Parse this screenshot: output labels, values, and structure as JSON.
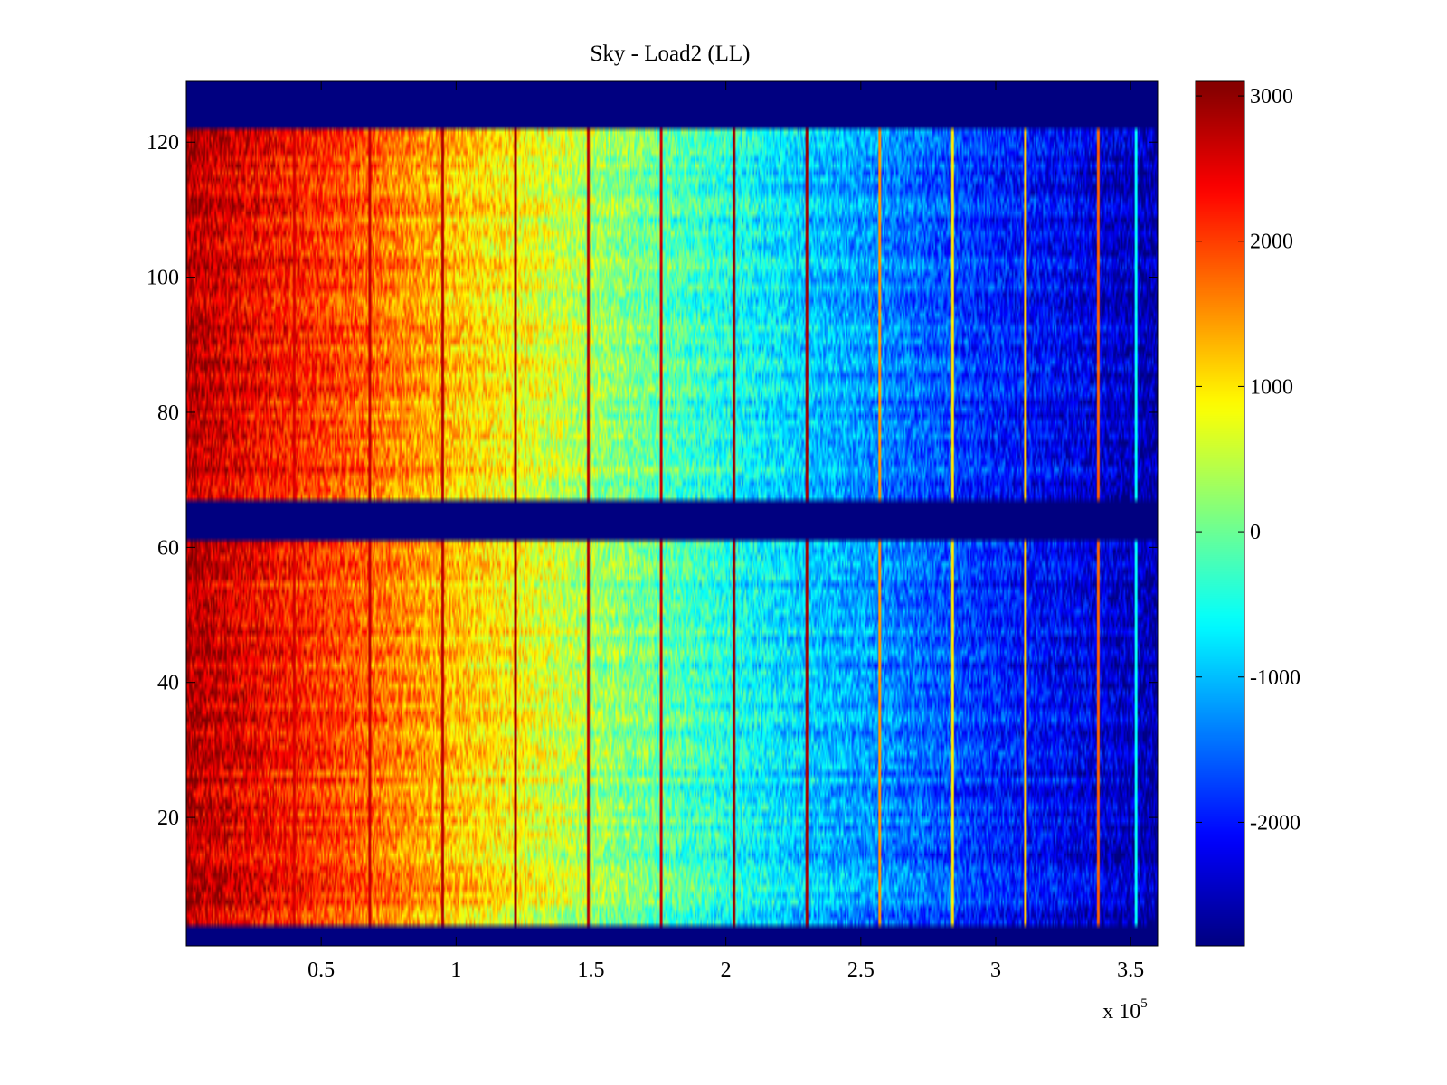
{
  "chart_data": {
    "type": "heatmap",
    "title": "Sky - Load2 (LL)",
    "xlabel": "",
    "ylabel": "",
    "x_exponent_label": {
      "base": "x 10",
      "exponent": "5"
    },
    "xlim": [
      0,
      3.6
    ],
    "ylim": [
      1,
      129
    ],
    "x_ticks": [
      {
        "value": 0.5,
        "label": "0.5"
      },
      {
        "value": 1,
        "label": "1"
      },
      {
        "value": 1.5,
        "label": "1.5"
      },
      {
        "value": 2,
        "label": "2"
      },
      {
        "value": 2.5,
        "label": "2.5"
      },
      {
        "value": 3,
        "label": "3"
      },
      {
        "value": 3.5,
        "label": "3.5"
      }
    ],
    "y_ticks": [
      {
        "value": 20,
        "label": "20"
      },
      {
        "value": 40,
        "label": "40"
      },
      {
        "value": 60,
        "label": "60"
      },
      {
        "value": 80,
        "label": "80"
      },
      {
        "value": 100,
        "label": "100"
      },
      {
        "value": 120,
        "label": "120"
      }
    ],
    "colorbar": {
      "colormap": "jet",
      "range": [
        -2850,
        3100
      ],
      "ticks": [
        {
          "value": 3000,
          "label": "3000"
        },
        {
          "value": 2000,
          "label": "2000"
        },
        {
          "value": 1000,
          "label": "1000"
        },
        {
          "value": 0,
          "label": "0"
        },
        {
          "value": -1000,
          "label": "-1000"
        },
        {
          "value": -2000,
          "label": "-2000"
        }
      ]
    },
    "masked_row_ranges": [
      [
        1,
        4
      ],
      [
        61,
        67
      ],
      [
        122,
        129
      ]
    ],
    "masked_value": -2850,
    "value_profile_along_x": [
      {
        "x": 0.0,
        "value": 2800
      },
      {
        "x": 0.25,
        "value": 2400
      },
      {
        "x": 0.5,
        "value": 2050
      },
      {
        "x": 0.75,
        "value": 1650
      },
      {
        "x": 1.0,
        "value": 1200
      },
      {
        "x": 1.25,
        "value": 800
      },
      {
        "x": 1.5,
        "value": 350
      },
      {
        "x": 1.75,
        "value": -50
      },
      {
        "x": 2.0,
        "value": -450
      },
      {
        "x": 2.25,
        "value": -850
      },
      {
        "x": 2.5,
        "value": -1200
      },
      {
        "x": 2.75,
        "value": -1550
      },
      {
        "x": 3.0,
        "value": -1900
      },
      {
        "x": 3.25,
        "value": -2150
      },
      {
        "x": 3.6,
        "value": -2600
      }
    ],
    "spike_columns": [
      {
        "x": 0.4,
        "value": 2600
      },
      {
        "x": 0.68,
        "value": 2700
      },
      {
        "x": 0.95,
        "value": 2800
      },
      {
        "x": 1.22,
        "value": 2900
      },
      {
        "x": 1.49,
        "value": 2800
      },
      {
        "x": 1.76,
        "value": 2700
      },
      {
        "x": 2.03,
        "value": 2950
      },
      {
        "x": 2.3,
        "value": 2900
      },
      {
        "x": 2.57,
        "value": 1500
      },
      {
        "x": 2.84,
        "value": 1000
      },
      {
        "x": 3.11,
        "value": 1200
      },
      {
        "x": 3.38,
        "value": 1800
      },
      {
        "x": 3.52,
        "value": -600
      }
    ]
  }
}
